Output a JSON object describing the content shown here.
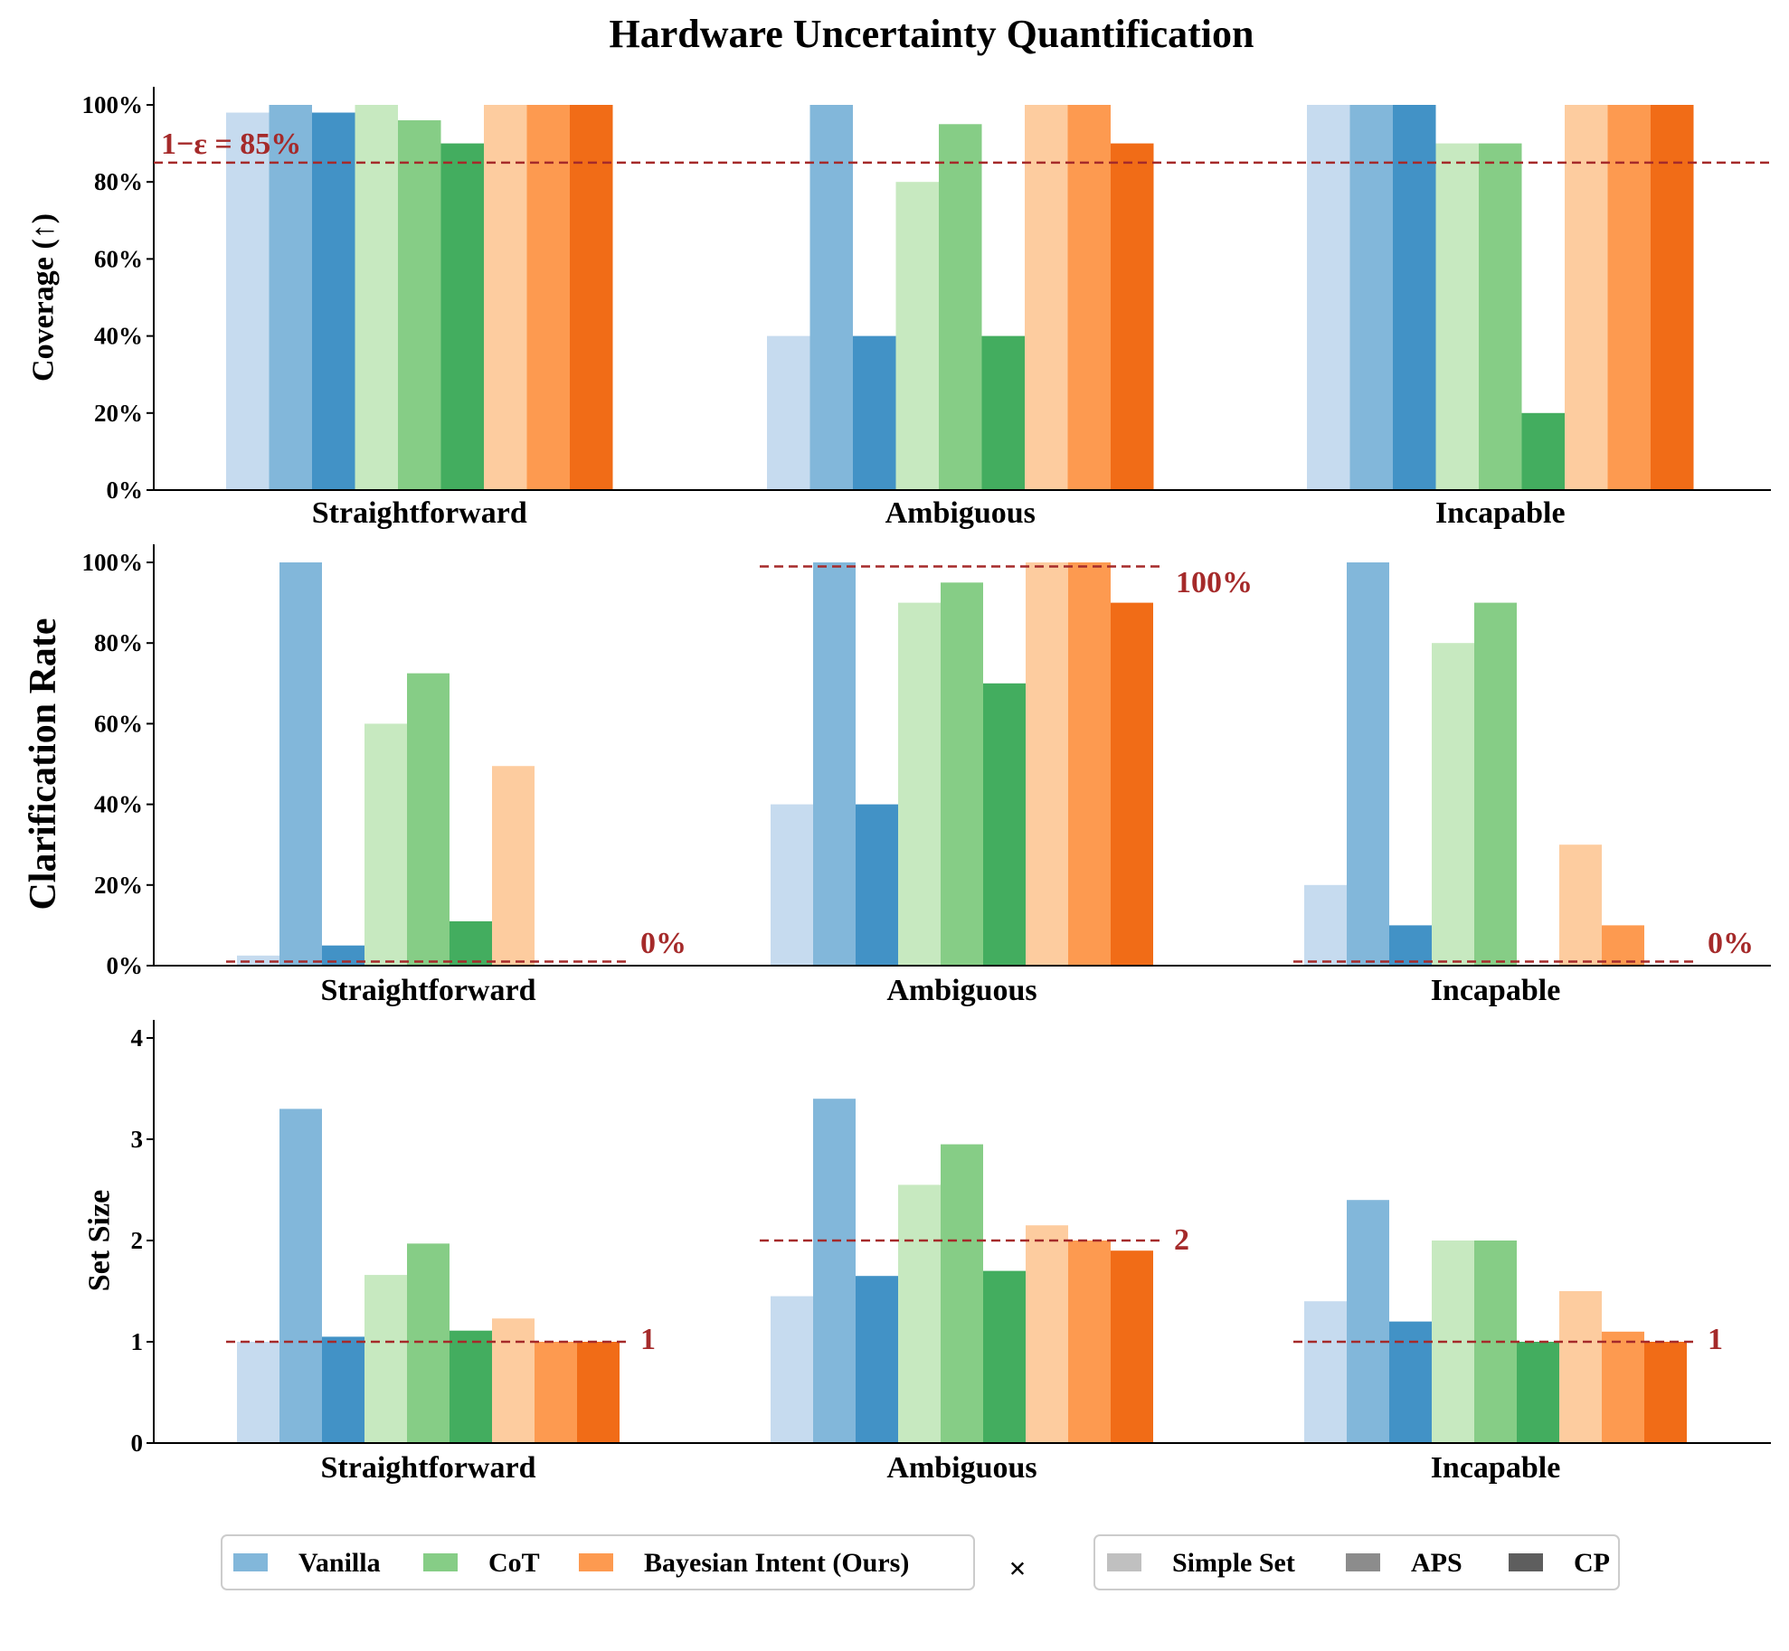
{
  "chart_data": {
    "type": "bar",
    "title": "Hardware Uncertainty Quantification",
    "categories": [
      "Straightforward",
      "Ambiguous",
      "Incapable"
    ],
    "series_order": [
      "Vanilla Simple Set",
      "Vanilla APS",
      "Vanilla CP",
      "CoT Simple Set",
      "CoT APS",
      "CoT CP",
      "Bayesian Intent Simple Set",
      "Bayesian Intent APS",
      "Bayesian Intent CP"
    ],
    "colors": [
      "#c6dbef",
      "#82b7da",
      "#4292c6",
      "#c7e9c0",
      "#86cd86",
      "#43ad5f",
      "#fdcc9f",
      "#fd9a50",
      "#f16c17"
    ],
    "panels": [
      {
        "ylabel": "Coverage (↑)",
        "ylim": [
          0,
          100
        ],
        "yticks": [
          "0%",
          "20%",
          "40%",
          "60%",
          "80%",
          "100%"
        ],
        "ytick_values": [
          0,
          20,
          40,
          60,
          80,
          100
        ],
        "values": [
          [
            98,
            100,
            98,
            100,
            96,
            90,
            100,
            100,
            100
          ],
          [
            40,
            100,
            40,
            80,
            95,
            40,
            100,
            100,
            90
          ],
          [
            100,
            100,
            100,
            90,
            90,
            20,
            100,
            100,
            100
          ]
        ],
        "reference_lines": [
          {
            "value": 85,
            "span": "all",
            "label": "1−ε = 85%"
          }
        ]
      },
      {
        "ylabel": "Clarification Rate",
        "ylim": [
          0,
          100
        ],
        "yticks": [
          "0%",
          "20%",
          "40%",
          "60%",
          "80%",
          "100%"
        ],
        "ytick_values": [
          0,
          20,
          40,
          60,
          80,
          100
        ],
        "values": [
          [
            2.5,
            100,
            5,
            60,
            72.5,
            11,
            49.5,
            0,
            0
          ],
          [
            40,
            100,
            40,
            90,
            95,
            70,
            100,
            100,
            90
          ],
          [
            20,
            100,
            10,
            80,
            90,
            0,
            30,
            10,
            0
          ]
        ],
        "reference_lines": [
          {
            "value": 1,
            "category": 0,
            "label": "0%"
          },
          {
            "value": 99,
            "category": 1,
            "label": "100%"
          },
          {
            "value": 1,
            "category": 2,
            "label": "0%"
          }
        ]
      },
      {
        "ylabel": "Set Size",
        "ylim": [
          0,
          4
        ],
        "yticks": [
          "0",
          "1",
          "2",
          "3",
          "4"
        ],
        "ytick_values": [
          0,
          1,
          2,
          3,
          4
        ],
        "values": [
          [
            1.0,
            3.3,
            1.05,
            1.66,
            1.97,
            1.11,
            1.23,
            1.0,
            1.0
          ],
          [
            1.45,
            3.4,
            1.65,
            2.55,
            2.95,
            1.7,
            2.15,
            2.0,
            1.9
          ],
          [
            1.4,
            2.4,
            1.2,
            2.0,
            2.0,
            1.0,
            1.5,
            1.1,
            1.0
          ]
        ],
        "reference_lines": [
          {
            "value": 1,
            "category": 0,
            "label": "1"
          },
          {
            "value": 2,
            "category": 1,
            "label": "2"
          },
          {
            "value": 1,
            "category": 2,
            "label": "1"
          }
        ]
      }
    ],
    "legend_methods": [
      {
        "label": "Vanilla",
        "color": "#82b7da"
      },
      {
        "label": "CoT",
        "color": "#86cd86"
      },
      {
        "label": "Bayesian Intent (Ours)",
        "color": "#fd9a50"
      }
    ],
    "legend_times": "×",
    "legend_strategies": [
      {
        "label": "Simple Set",
        "color": "#c0c0c0"
      },
      {
        "label": "APS",
        "color": "#8c8c8c"
      },
      {
        "label": "CP",
        "color": "#5e5e5e"
      }
    ],
    "reference_color": "#a52a2a",
    "legend_position": "bottom"
  }
}
